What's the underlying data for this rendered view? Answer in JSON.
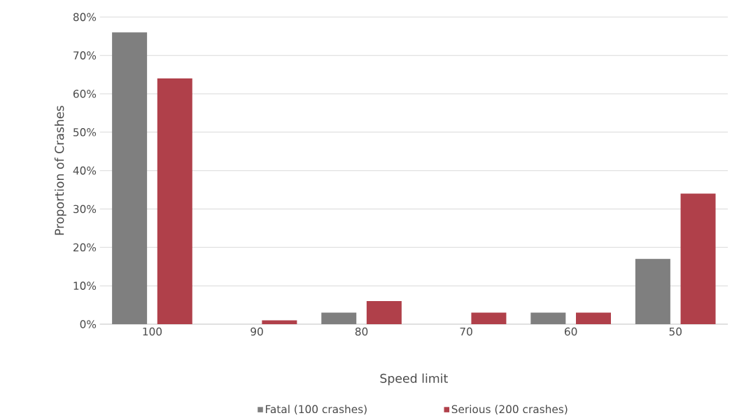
{
  "chart_data": {
    "type": "bar",
    "xlabel": "Speed limit",
    "ylabel": "Proportion of Crashes",
    "categories": [
      "100",
      "90",
      "80",
      "70",
      "60",
      "50"
    ],
    "series": [
      {
        "name": "Fatal (100 crashes)",
        "color": "#7f7f7f",
        "values": [
          76,
          0,
          3,
          0,
          3,
          17
        ]
      },
      {
        "name": "Serious (200 crashes)",
        "color": "#b0404a",
        "values": [
          64,
          1,
          6,
          3,
          3,
          34
        ]
      }
    ],
    "ylim": [
      0,
      80
    ],
    "yticks": [
      {
        "value": 0,
        "label": "0%"
      },
      {
        "value": 10,
        "label": "10%"
      },
      {
        "value": 20,
        "label": "20%"
      },
      {
        "value": 30,
        "label": "30%"
      },
      {
        "value": 40,
        "label": "40%"
      },
      {
        "value": 50,
        "label": "50%"
      },
      {
        "value": 60,
        "label": "60%"
      },
      {
        "value": 70,
        "label": "70%"
      },
      {
        "value": 80,
        "label": "80%"
      }
    ],
    "grid": "y",
    "legend": "bottom"
  }
}
